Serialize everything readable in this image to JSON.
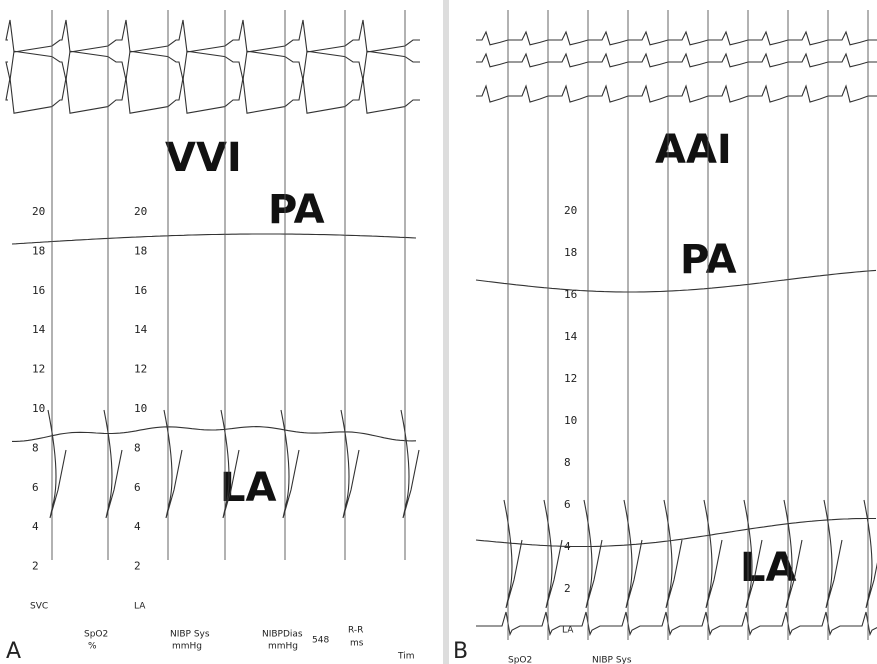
{
  "panels": [
    {
      "label": "A",
      "mode": "VVI",
      "pa_label": "PA",
      "la_label": "LA",
      "scales": [
        [
          "20",
          "18",
          "16",
          "14",
          "12",
          "10",
          "8",
          "6",
          "4",
          "2"
        ],
        [
          "20",
          "18",
          "16",
          "14",
          "12",
          "10",
          "8",
          "6",
          "4",
          "2"
        ]
      ],
      "channel_labels": [
        "SVC",
        "LA"
      ],
      "footer": [
        "SpO2",
        "%",
        "NIBP Sys",
        "mmHg",
        "NIBPDias",
        "mmHg",
        "548",
        "R-R",
        "ms",
        "Tim"
      ]
    },
    {
      "label": "B",
      "mode": "AAI",
      "pa_label": "PA",
      "la_label": "LA",
      "scales": [
        [
          "20",
          "18",
          "16",
          "14",
          "12",
          "10",
          "8",
          "6",
          "4",
          "2"
        ]
      ],
      "channel_labels": [
        "LA"
      ],
      "footer": [
        "SpO2",
        "NIBP Sys"
      ]
    }
  ]
}
